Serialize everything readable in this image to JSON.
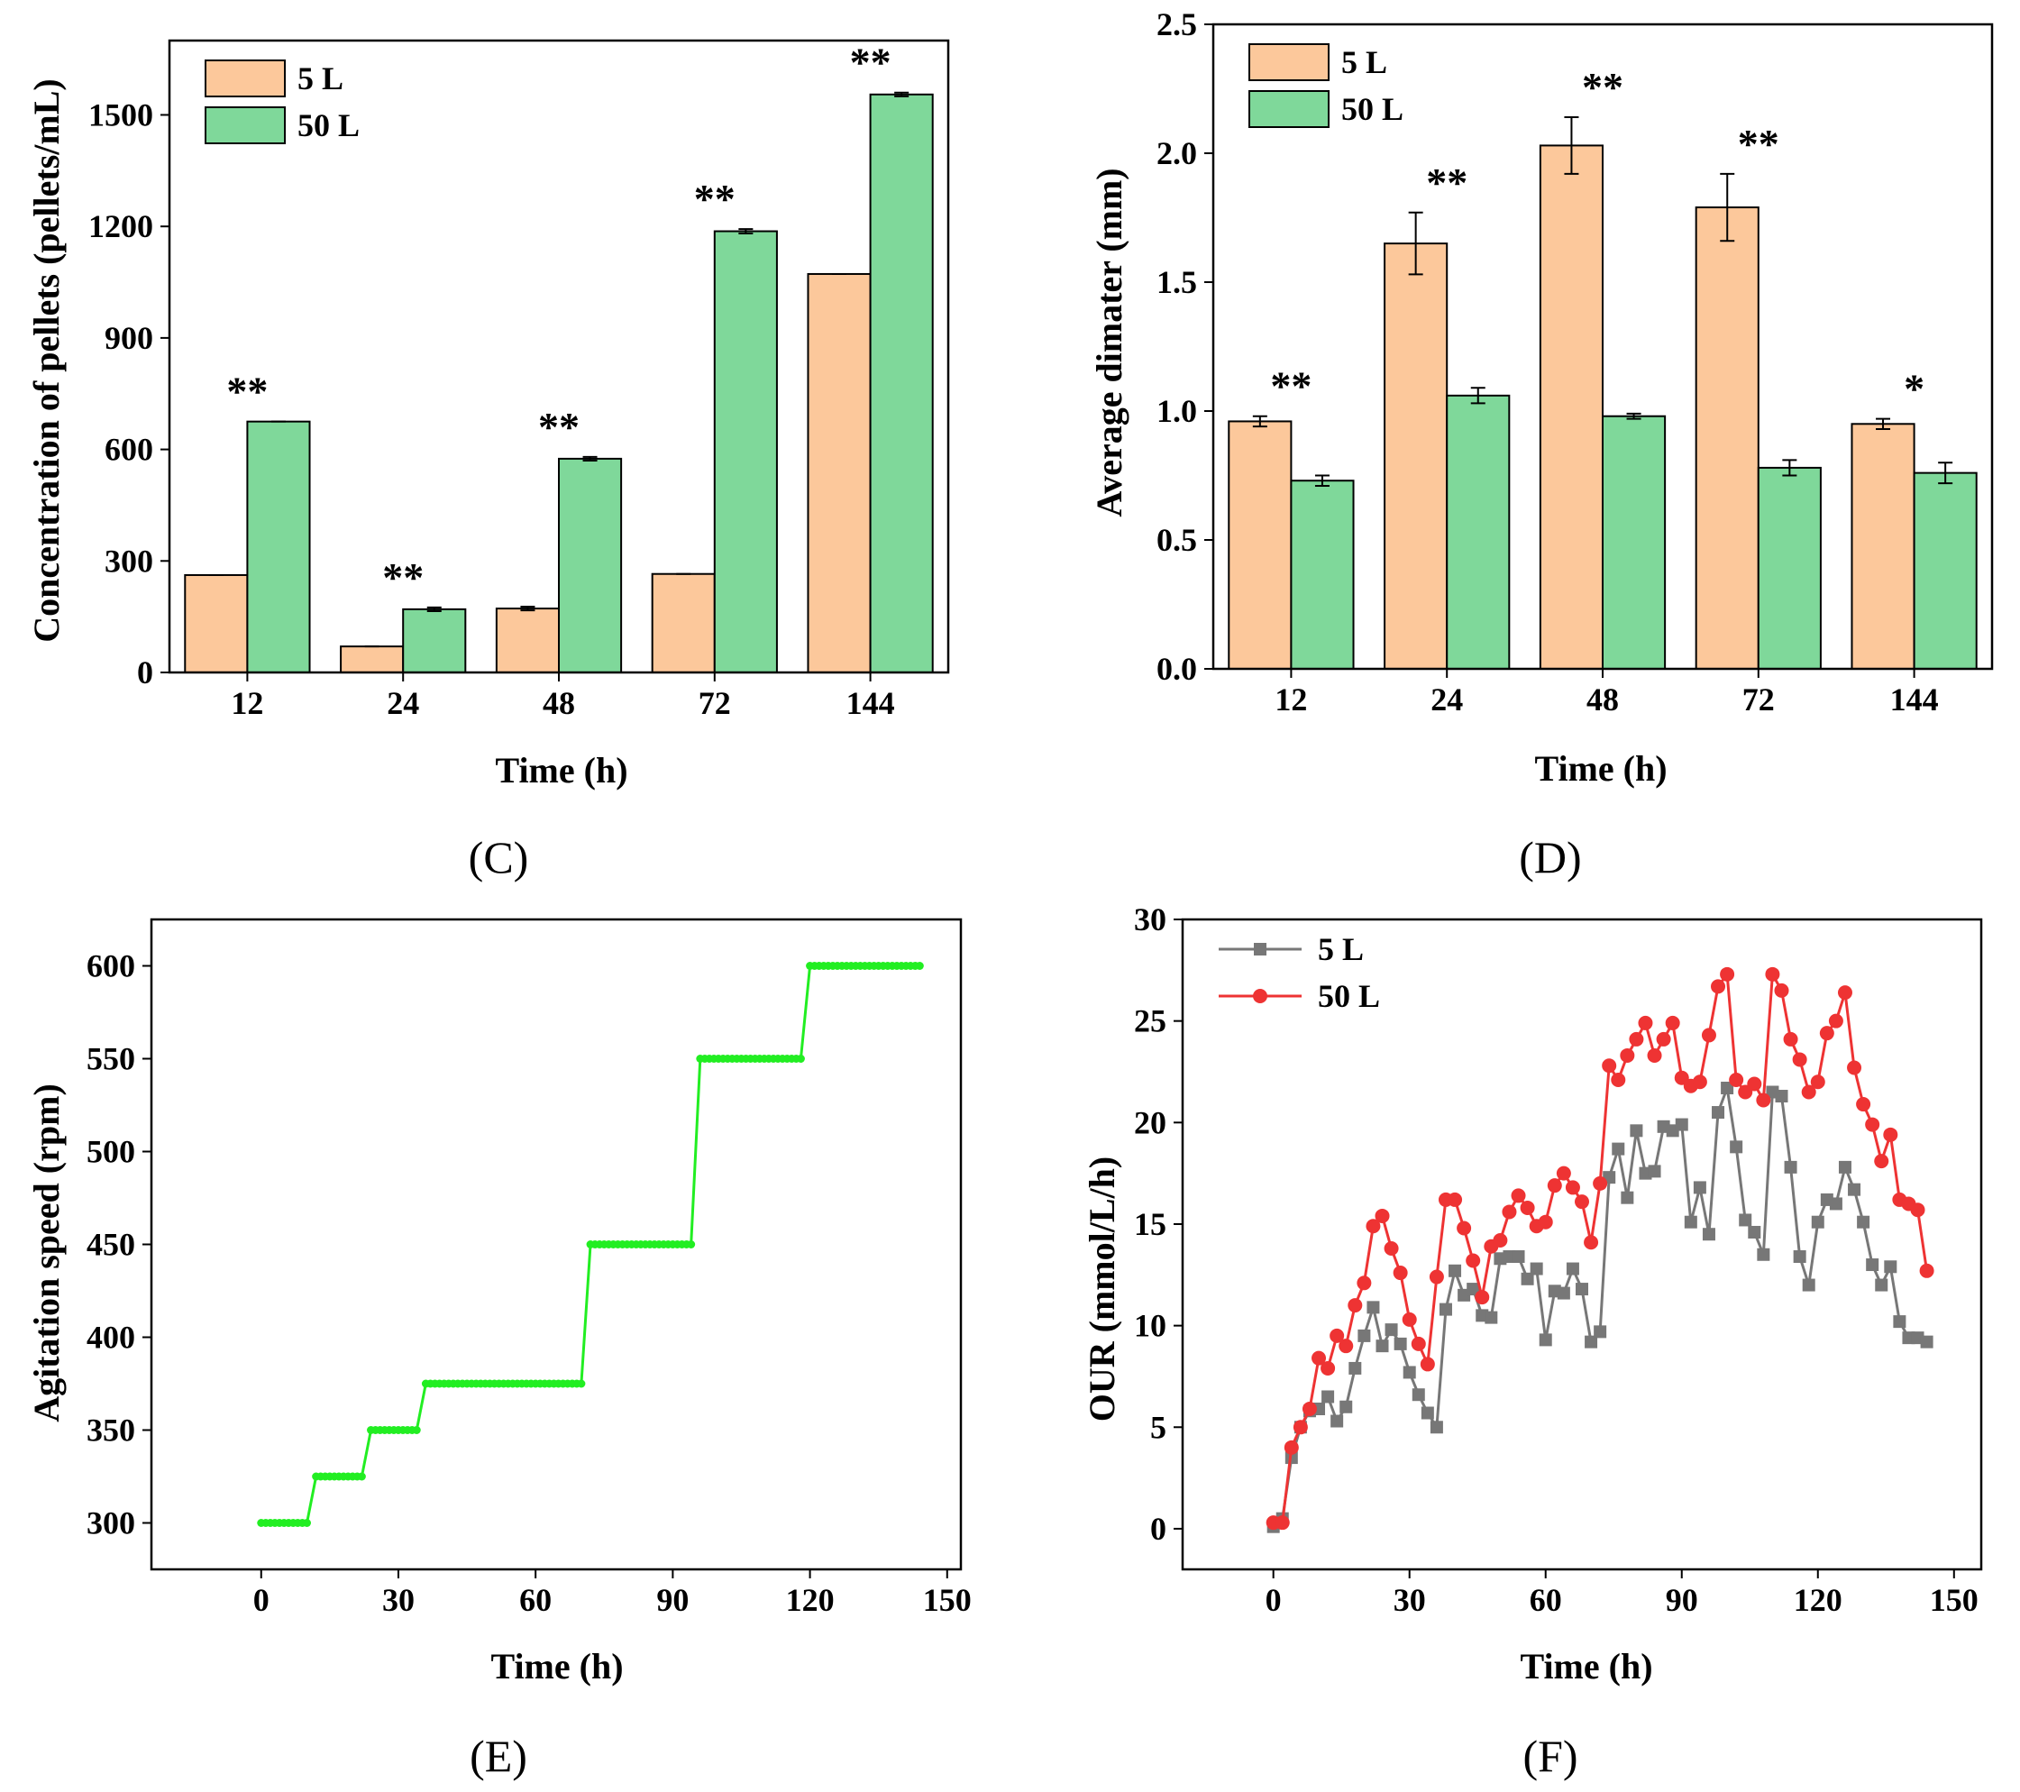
{
  "colors": {
    "bar_5L": "#FCC89B",
    "bar_50L": "#7FD89A",
    "agitation": "#22EE22",
    "our_5L": "#777777",
    "our_50L": "#EE3333"
  },
  "chart_data": [
    {
      "id": "C",
      "type": "bar",
      "panel_label": "(C)",
      "xlabel": "Time (h)",
      "ylabel": "Concentration of pellets (pellets/mL)",
      "categories": [
        "12",
        "24",
        "48",
        "72",
        "144"
      ],
      "ylim": [
        0,
        1700
      ],
      "yticks": [
        0,
        300,
        600,
        900,
        1200,
        1500
      ],
      "series": [
        {
          "name": "5 L",
          "values": [
            262,
            70,
            172,
            265,
            1072
          ],
          "errors": [
            0,
            0,
            5,
            0,
            0
          ]
        },
        {
          "name": "50 L",
          "values": [
            675,
            170,
            575,
            1187,
            1555
          ],
          "errors": [
            0,
            5,
            5,
            6,
            5
          ]
        }
      ],
      "significance": [
        "**",
        "**",
        "**",
        "**",
        "**"
      ],
      "legend": "top-left"
    },
    {
      "id": "D",
      "type": "bar",
      "panel_label": "(D)",
      "xlabel": "Time (h)",
      "ylabel": "Average dimater (mm)",
      "categories": [
        "12",
        "24",
        "48",
        "72",
        "144"
      ],
      "ylim": [
        0,
        2.5
      ],
      "yticks": [
        "0.0",
        "0.5",
        "1.0",
        "1.5",
        "2.0",
        "2.5"
      ],
      "series": [
        {
          "name": "5 L",
          "values": [
            0.96,
            1.65,
            2.03,
            1.79,
            0.95
          ],
          "errors": [
            0.02,
            0.12,
            0.11,
            0.13,
            0.02
          ]
        },
        {
          "name": "50 L",
          "values": [
            0.73,
            1.06,
            0.98,
            0.78,
            0.76
          ],
          "errors": [
            0.02,
            0.03,
            0.01,
            0.03,
            0.04
          ]
        }
      ],
      "significance": [
        "**",
        "**",
        "**",
        "**",
        "*"
      ],
      "legend": "top-left"
    },
    {
      "id": "E",
      "type": "line",
      "panel_label": "(E)",
      "xlabel": "Time (h)",
      "ylabel": "Agitation speed (rpm)",
      "xlim": [
        -24,
        153
      ],
      "ylim": [
        275,
        625
      ],
      "xticks": [
        0,
        30,
        60,
        90,
        120,
        150
      ],
      "yticks": [
        300,
        350,
        400,
        450,
        500,
        550,
        600
      ],
      "steps": [
        {
          "from": 0,
          "to": 10,
          "value": 300
        },
        {
          "from": 12,
          "to": 22,
          "value": 325
        },
        {
          "from": 24,
          "to": 34,
          "value": 350
        },
        {
          "from": 36,
          "to": 70,
          "value": 375
        },
        {
          "from": 72,
          "to": 94,
          "value": 450
        },
        {
          "from": 96,
          "to": 118,
          "value": 550
        },
        {
          "from": 120,
          "to": 144,
          "value": 600
        }
      ]
    },
    {
      "id": "F",
      "type": "line",
      "panel_label": "(F)",
      "xlabel": "Time (h)",
      "ylabel": "OUR (mmol/L/h)",
      "xlim": [
        -20,
        156
      ],
      "ylim": [
        -2,
        30
      ],
      "xticks": [
        0,
        30,
        60,
        90,
        120,
        150
      ],
      "yticks": [
        0,
        5,
        10,
        15,
        20,
        25,
        30
      ],
      "legend": "top-left",
      "x": [
        0,
        2,
        4,
        6,
        8,
        10,
        12,
        14,
        16,
        18,
        20,
        22,
        24,
        26,
        28,
        30,
        32,
        34,
        36,
        38,
        40,
        42,
        44,
        46,
        48,
        50,
        52,
        54,
        56,
        58,
        60,
        62,
        64,
        66,
        68,
        70,
        72,
        74,
        76,
        78,
        80,
        82,
        84,
        86,
        88,
        90,
        92,
        94,
        96,
        98,
        100,
        102,
        104,
        106,
        108,
        110,
        112,
        114,
        116,
        118,
        120,
        122,
        124,
        126,
        128,
        130,
        132,
        134,
        136,
        138,
        140,
        142,
        144
      ],
      "series": [
        {
          "name": "5 L",
          "values": [
            0.1,
            0.5,
            3.5,
            5.0,
            5.8,
            5.9,
            6.5,
            5.3,
            6.0,
            7.9,
            9.5,
            10.9,
            9.0,
            9.8,
            9.1,
            7.7,
            6.6,
            5.7,
            5.0,
            10.8,
            12.7,
            11.5,
            11.8,
            10.5,
            10.4,
            13.3,
            13.4,
            13.4,
            12.3,
            12.8,
            9.3,
            11.7,
            11.6,
            12.8,
            11.8,
            9.2,
            9.7,
            17.3,
            18.7,
            16.3,
            19.6,
            17.5,
            17.6,
            19.8,
            19.6,
            19.9,
            15.1,
            16.8,
            14.5,
            20.5,
            21.7,
            18.8,
            15.2,
            14.6,
            13.5,
            21.5,
            21.3,
            17.8,
            13.4,
            12.0,
            15.1,
            16.2,
            16.0,
            17.8,
            16.7,
            15.1,
            13.0,
            12.0,
            12.9,
            10.2,
            9.4,
            9.4,
            9.2
          ]
        },
        {
          "name": "50 L",
          "values": [
            0.3,
            0.3,
            4.0,
            5.0,
            5.9,
            8.4,
            7.9,
            9.5,
            9.0,
            11.0,
            12.1,
            14.9,
            15.4,
            13.8,
            12.6,
            10.3,
            9.1,
            8.1,
            12.4,
            16.2,
            16.2,
            14.8,
            13.2,
            11.4,
            13.9,
            14.2,
            15.6,
            16.4,
            15.8,
            14.9,
            15.1,
            16.9,
            17.5,
            16.8,
            16.1,
            14.1,
            17.0,
            22.8,
            22.1,
            23.3,
            24.1,
            24.9,
            23.3,
            24.1,
            24.9,
            22.2,
            21.8,
            22.0,
            24.3,
            26.7,
            27.3,
            22.1,
            21.5,
            21.9,
            21.1,
            27.3,
            26.5,
            24.1,
            23.1,
            21.5,
            22.0,
            24.4,
            25.0,
            26.4,
            22.7,
            20.9,
            19.9,
            18.1,
            19.4,
            16.2,
            16.0,
            15.7,
            12.7
          ]
        }
      ]
    }
  ]
}
